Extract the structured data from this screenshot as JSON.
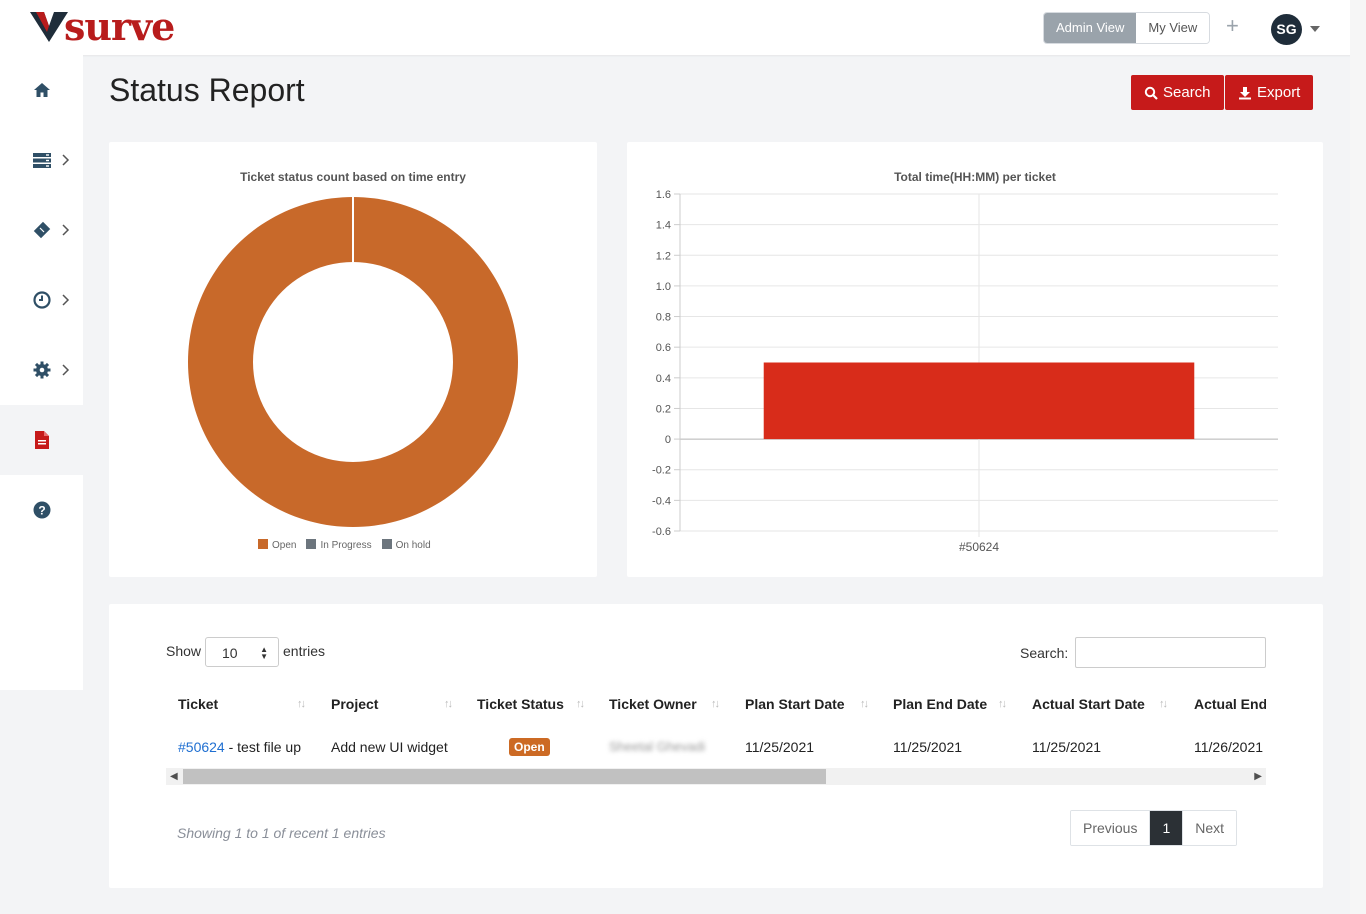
{
  "header": {
    "logo_text": "surve",
    "admin_view_label": "Admin View",
    "my_view_label": "My View",
    "add_symbol": "+",
    "user_initials": "SG"
  },
  "sidebar": {
    "items": [
      {
        "name": "home",
        "icon": "home-icon"
      },
      {
        "name": "servers",
        "icon": "server-icon",
        "expandable": true
      },
      {
        "name": "tickets",
        "icon": "ticket-icon",
        "expandable": true
      },
      {
        "name": "time",
        "icon": "clock-icon",
        "expandable": true
      },
      {
        "name": "settings",
        "icon": "gear-icon",
        "expandable": true
      },
      {
        "name": "reports",
        "icon": "file-icon",
        "active": true
      },
      {
        "name": "help",
        "icon": "question-icon"
      }
    ]
  },
  "page": {
    "title": "Status Report",
    "search_label": "Search",
    "export_label": "Export"
  },
  "chart_data": [
    {
      "type": "pie",
      "title": "Ticket status count based on  time entry",
      "labels": [
        "Open",
        "In Progress",
        "On hold"
      ],
      "values": [
        1,
        0,
        0
      ],
      "colors": [
        "#c8692a",
        "#6c757d",
        "#6c757d"
      ],
      "legend": "bottom"
    },
    {
      "type": "bar",
      "title": "Total time(HH:MM) per ticket",
      "categories": [
        "#50624"
      ],
      "values": [
        0.5
      ],
      "ylim": [
        -0.6,
        1.6
      ],
      "yticks": [
        "1.6",
        "1.4",
        "1.2",
        "1.0",
        "0.8",
        "0.6",
        "0.4",
        "0.2",
        "0",
        "-0.2",
        "-0.4",
        "-0.6"
      ],
      "color": "#d82c1a",
      "grid": true
    }
  ],
  "table": {
    "show_label": "Show",
    "page_length": "10",
    "entries_label": "entries",
    "search_label": "Search:",
    "columns": [
      "Ticket",
      "Project",
      "Ticket Status",
      "Ticket Owner",
      "Plan Start Date",
      "Plan End Date",
      "Actual Start Date",
      "Actual End Date"
    ],
    "rows": [
      {
        "ticket_id": "#50624",
        "ticket_title": " - test file up",
        "project": "Add new UI widget",
        "status": "Open",
        "owner": "Sheetal Ghevadi",
        "plan_start": "11/25/2021",
        "plan_end": "11/25/2021",
        "actual_start": "11/25/2021",
        "actual_end": "11/26/2021"
      }
    ],
    "showing_text": "Showing 1 to 1 of recent 1 entries",
    "pagination": {
      "previous": "Previous",
      "current": "1",
      "next": "Next"
    }
  }
}
